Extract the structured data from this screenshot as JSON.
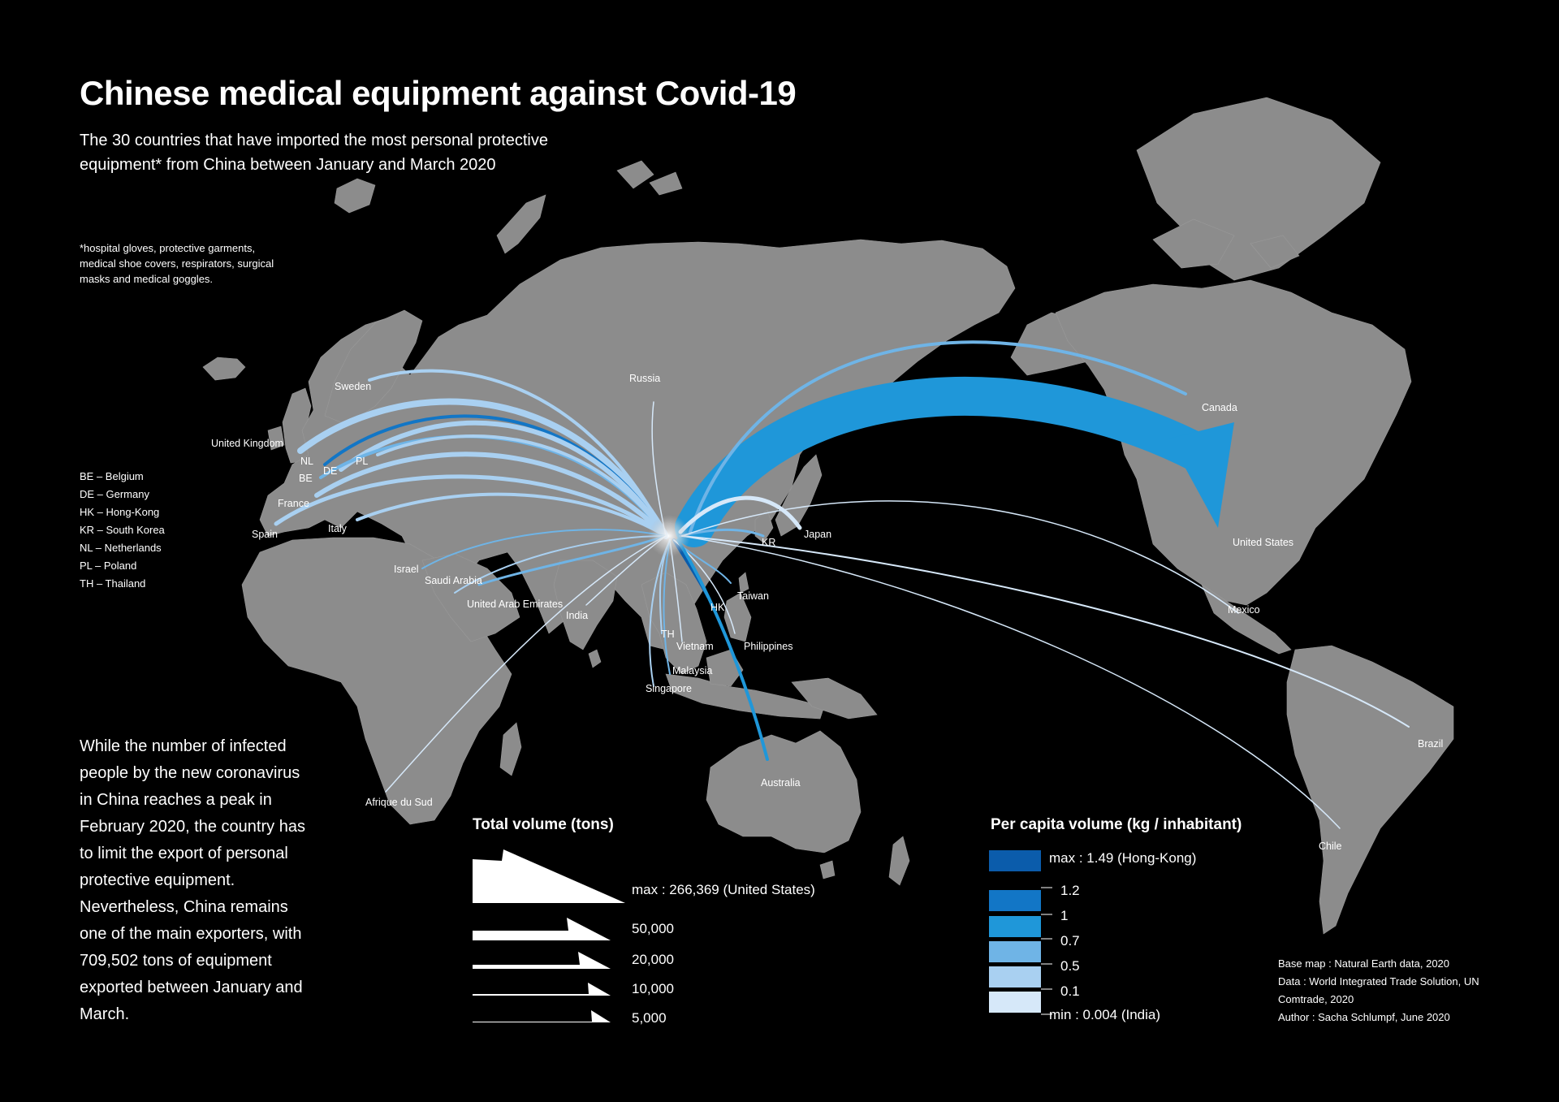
{
  "title": "Chinese medical equipment against Covid-19",
  "subtitle": "The 30 countries that have imported the most personal protective equipment* from China between January and March 2020",
  "footnote": "*hospital gloves, protective garments, medical shoe covers, respirators, surgical masks and medical goggles.",
  "abbreviations": [
    "BE – Belgium",
    "DE – Germany",
    "HK – Hong-Kong",
    "KR – South Korea",
    "NL – Netherlands",
    "PL – Poland",
    "TH – Thailand"
  ],
  "body_text": "While the number of infected people by the new coronavirus in China reaches a peak in February 2020, the country has to limit the export of personal protective equipment. Nevertheless, China remains one of the main exporters, with 709,502 tons of equipment exported between January and March.",
  "country_labels": [
    "Russia",
    "Sweden",
    "United Kingdom",
    "NL",
    "BE",
    "DE",
    "PL",
    "France",
    "Spain",
    "Italy",
    "Israel",
    "Saudi Arabia",
    "United Arab Emirates",
    "India",
    "TH",
    "Vietnam",
    "Malaysia",
    "Singapore",
    "HK",
    "Taiwan",
    "Philippines",
    "KR",
    "Japan",
    "Australia",
    "Afrique du Sud",
    "Canada",
    "United States",
    "Mexico",
    "Brazil",
    "Chile"
  ],
  "colors": {
    "background": "#000000",
    "land": "#8c8c8c",
    "per_capita_scale": [
      "#0b5cab",
      "#1276c6",
      "#1f97d9",
      "#6fb4e6",
      "#a9d0f1",
      "#d6e8f9"
    ]
  },
  "legend_volume": {
    "title": "Total volume (tons)",
    "entries": [
      {
        "label": "max : 266,369 (United States)",
        "value": 266369
      },
      {
        "label": "50,000",
        "value": 50000
      },
      {
        "label": "20,000",
        "value": 20000
      },
      {
        "label": "10,000",
        "value": 10000
      },
      {
        "label": "5,000",
        "value": 5000
      }
    ]
  },
  "legend_per_capita": {
    "title": "Per capita volume (kg / inhabitant)",
    "max_label": "max : 1.49 (Hong-Kong)",
    "breaks": [
      "1.2",
      "1",
      "0.7",
      "0.5",
      "0.1"
    ],
    "min_label": "min : 0.004 (India)"
  },
  "credits": [
    "Base map : Natural Earth data, 2020",
    "Data : World Integrated Trade Solution, UN",
    "Comtrade, 2020",
    "Author : Sacha Schlumpf, June 2020"
  ]
}
